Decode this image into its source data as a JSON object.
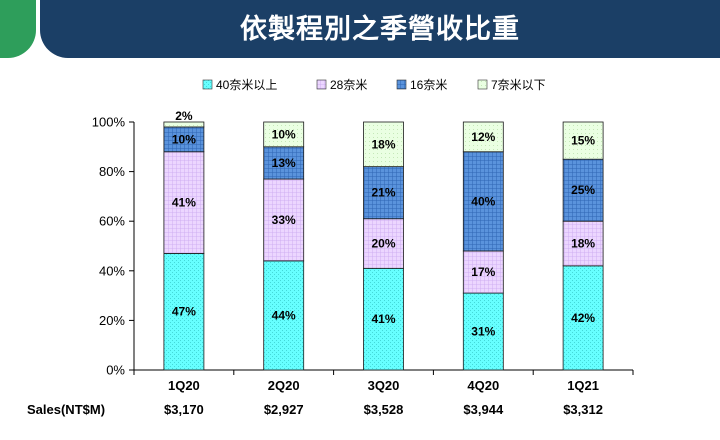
{
  "page": {
    "title": "依製程別之季營收比重"
  },
  "chart_data": {
    "type": "bar",
    "stacked": true,
    "categories": [
      "1Q20",
      "2Q20",
      "3Q20",
      "4Q20",
      "1Q21"
    ],
    "series": [
      {
        "name": "40奈米以上",
        "values": [
          47,
          44,
          41,
          31,
          42
        ],
        "color": "#66ffff",
        "pattern": "dots"
      },
      {
        "name": "28奈米",
        "values": [
          41,
          33,
          20,
          17,
          18
        ],
        "color": "#e6ccff",
        "pattern": "grid"
      },
      {
        "name": "16奈米",
        "values": [
          10,
          13,
          21,
          40,
          25
        ],
        "color": "#4d88d6",
        "pattern": "dense-grid"
      },
      {
        "name": "7奈米以下",
        "values": [
          2,
          10,
          18,
          12,
          15
        ],
        "color": "#e6ffdd",
        "pattern": "fine"
      }
    ],
    "value_labels": [
      [
        "47%",
        "44%",
        "41%",
        "31%",
        "42%"
      ],
      [
        "41%",
        "33%",
        "20%",
        "17%",
        "18%"
      ],
      [
        "10%",
        "13%",
        "21%",
        "40%",
        "25%"
      ],
      [
        "2%",
        "10%",
        "18%",
        "12%",
        "15%"
      ]
    ],
    "yticks": [
      "0%",
      "20%",
      "40%",
      "60%",
      "80%",
      "100%"
    ],
    "ylim": [
      0,
      100
    ],
    "ylabel": "",
    "xlabel": "",
    "grid": false,
    "legend_position": "top",
    "sales_row": {
      "label": "Sales(NT$M)",
      "values": [
        "$3,170",
        "$2,927",
        "$3,528",
        "$3,944",
        "$3,312"
      ]
    }
  }
}
